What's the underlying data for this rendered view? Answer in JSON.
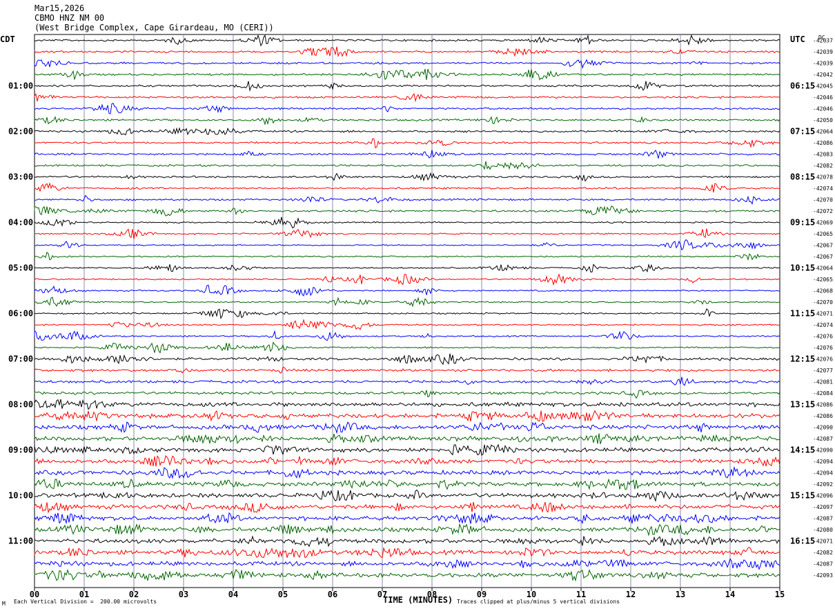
{
  "header": {
    "date": "Mar15,2026",
    "station": "CBMO HNZ NM 00",
    "location": "(West Bridge Complex, Cape Girardeau, MO (CERI))"
  },
  "left_timezone": "CDT",
  "right_timezone": "UTC",
  "dc_header": "DC",
  "footer": {
    "scale_note": "Each Vertical Division =  200.00 microvolts",
    "clip_note": "Traces clipped at plus/minus 5 vertical divisions",
    "corner_mark": "M"
  },
  "chart_data": {
    "type": "line",
    "title": "",
    "xlabel": "TIME (MINUTES)",
    "xlim": [
      0,
      15
    ],
    "x_ticks": [
      "00",
      "01",
      "02",
      "03",
      "04",
      "05",
      "06",
      "07",
      "08",
      "09",
      "10",
      "11",
      "12",
      "13",
      "14",
      "15"
    ],
    "trace_colors": [
      "#000000",
      "#ff0000",
      "#0000ff",
      "#006400"
    ],
    "trace_count": 48,
    "trace_minutes": 15,
    "left_hour_labels": [
      "01:00",
      "02:00",
      "03:00",
      "04:00",
      "05:00",
      "06:00",
      "07:00",
      "08:00",
      "09:00",
      "10:00",
      "11:00"
    ],
    "right_hour_labels": [
      "06:15",
      "07:15",
      "08:15",
      "09:15",
      "10:15",
      "11:15",
      "12:15",
      "13:15",
      "14:15",
      "15:15",
      "16:15"
    ],
    "dc_offsets": [
      "-42037",
      "-42039",
      "-42039",
      "-42042",
      "-42045",
      "-42046",
      "-42046",
      "-42050",
      "-42064",
      "-42086",
      "-42083",
      "-42082",
      "-42078",
      "-42074",
      "-42070",
      "-42072",
      "-42069",
      "-42065",
      "-42067",
      "-42067",
      "-42064",
      "-42065",
      "-42068",
      "-42070",
      "-42071",
      "-42074",
      "-42076",
      "-42076",
      "-42076",
      "-42077",
      "-42081",
      "-42084",
      "-42086",
      "-42086",
      "-42090",
      "-42087",
      "-42090",
      "-42094",
      "-42094",
      "-42092",
      "-42096",
      "-42097",
      "-42087",
      "-42080",
      "-42071",
      "-42082",
      "-42087",
      "-42093"
    ]
  }
}
